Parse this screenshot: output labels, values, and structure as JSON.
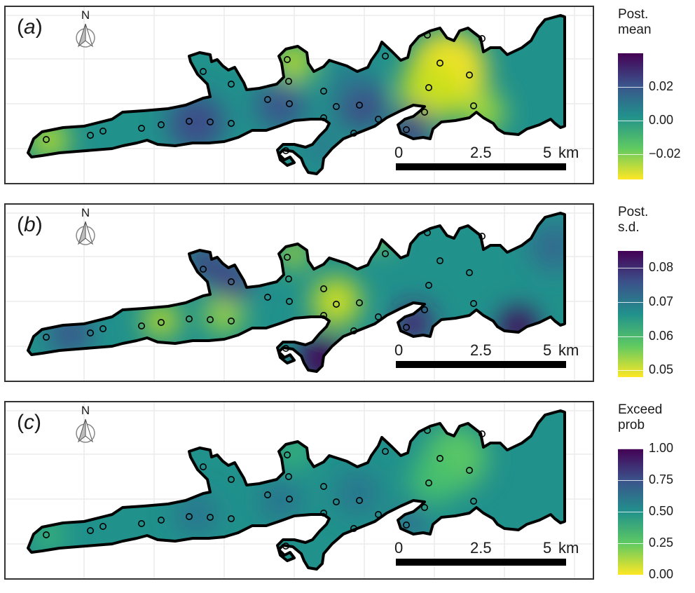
{
  "panels": [
    {
      "label": "a",
      "north_label": "N",
      "scale": {
        "ticks": [
          "0",
          "2.5",
          "5"
        ],
        "unit": "km"
      },
      "legend": {
        "title": [
          "Post.",
          "mean"
        ],
        "ticks": [
          "0.02",
          "0.00",
          "−0.02"
        ],
        "values": [
          0.02,
          0.0,
          -0.02
        ],
        "range": [
          -0.035,
          0.04
        ]
      },
      "blobs": [
        {
          "x": 640,
          "y": 100,
          "r": 55,
          "c": "#fde725"
        },
        {
          "x": 615,
          "y": 130,
          "r": 45,
          "c": "#c8e020"
        },
        {
          "x": 420,
          "y": 88,
          "r": 28,
          "c": "#bddf26"
        },
        {
          "x": 70,
          "y": 200,
          "r": 28,
          "c": "#b5de2b"
        },
        {
          "x": 690,
          "y": 160,
          "r": 30,
          "c": "#a0da39"
        },
        {
          "x": 400,
          "y": 150,
          "r": 35,
          "c": "#3b528b"
        },
        {
          "x": 515,
          "y": 148,
          "r": 35,
          "c": "#404387"
        },
        {
          "x": 590,
          "y": 180,
          "r": 28,
          "c": "#46337e"
        },
        {
          "x": 280,
          "y": 175,
          "r": 40,
          "c": "#3e4989"
        },
        {
          "x": 500,
          "y": 120,
          "r": 25,
          "c": "#2c728e"
        },
        {
          "x": 460,
          "y": 210,
          "r": 25,
          "c": "#2a788e"
        }
      ],
      "legend_colors": [
        "#440154",
        "#3b528b",
        "#21918c",
        "#5ec962",
        "#fde725"
      ]
    },
    {
      "label": "b",
      "north_label": "N",
      "scale": {
        "ticks": [
          "0",
          "2.5",
          "5"
        ],
        "unit": "km"
      },
      "legend": {
        "title": [
          "Post.",
          "s.d."
        ],
        "ticks": [
          "0.08",
          "0.07",
          "0.06",
          "0.05"
        ],
        "values": [
          0.08,
          0.07,
          0.06,
          0.05
        ],
        "range": [
          0.048,
          0.085
        ]
      },
      "blobs": [
        {
          "x": 480,
          "y": 148,
          "r": 35,
          "c": "#d2e21b"
        },
        {
          "x": 230,
          "y": 175,
          "r": 25,
          "c": "#c2df23"
        },
        {
          "x": 320,
          "y": 165,
          "r": 28,
          "c": "#a5db36"
        },
        {
          "x": 420,
          "y": 80,
          "r": 20,
          "c": "#b8de29"
        },
        {
          "x": 540,
          "y": 55,
          "r": 18,
          "c": "#a0da39"
        },
        {
          "x": 330,
          "y": 120,
          "r": 30,
          "c": "#433e85"
        },
        {
          "x": 460,
          "y": 230,
          "r": 35,
          "c": "#440154"
        },
        {
          "x": 590,
          "y": 180,
          "r": 28,
          "c": "#481f70"
        },
        {
          "x": 740,
          "y": 185,
          "r": 28,
          "c": "#440154"
        },
        {
          "x": 100,
          "y": 195,
          "r": 30,
          "c": "#3b528b"
        },
        {
          "x": 790,
          "y": 70,
          "r": 35,
          "c": "#31688e"
        },
        {
          "x": 290,
          "y": 90,
          "r": 22,
          "c": "#46337e"
        }
      ],
      "legend_colors": [
        "#440154",
        "#3b528b",
        "#21918c",
        "#5ec962",
        "#fde725"
      ]
    },
    {
      "label": "c",
      "north_label": "N",
      "scale": {
        "ticks": [
          "0",
          "2.5",
          "5"
        ],
        "unit": "km"
      },
      "legend": {
        "title": [
          "Exceed",
          "prob"
        ],
        "ticks": [
          "1.00",
          "0.75",
          "0.50",
          "0.25",
          "0.00"
        ],
        "values": [
          1.0,
          0.75,
          0.5,
          0.25,
          0.0
        ],
        "range": [
          0.0,
          1.0
        ]
      },
      "blobs": [
        {
          "x": 650,
          "y": 90,
          "r": 45,
          "c": "#5ec962"
        },
        {
          "x": 620,
          "y": 120,
          "r": 35,
          "c": "#4ac16d"
        },
        {
          "x": 420,
          "y": 80,
          "r": 22,
          "c": "#3fbc73"
        },
        {
          "x": 70,
          "y": 200,
          "r": 22,
          "c": "#3fbc73"
        },
        {
          "x": 510,
          "y": 140,
          "r": 30,
          "c": "#2c728e"
        },
        {
          "x": 400,
          "y": 150,
          "r": 28,
          "c": "#2d708e"
        },
        {
          "x": 280,
          "y": 170,
          "r": 30,
          "c": "#2c728e"
        },
        {
          "x": 585,
          "y": 180,
          "r": 22,
          "c": "#31688e"
        }
      ],
      "legend_colors": [
        "#440154",
        "#3b528b",
        "#21918c",
        "#5ec962",
        "#fde725"
      ]
    }
  ]
}
